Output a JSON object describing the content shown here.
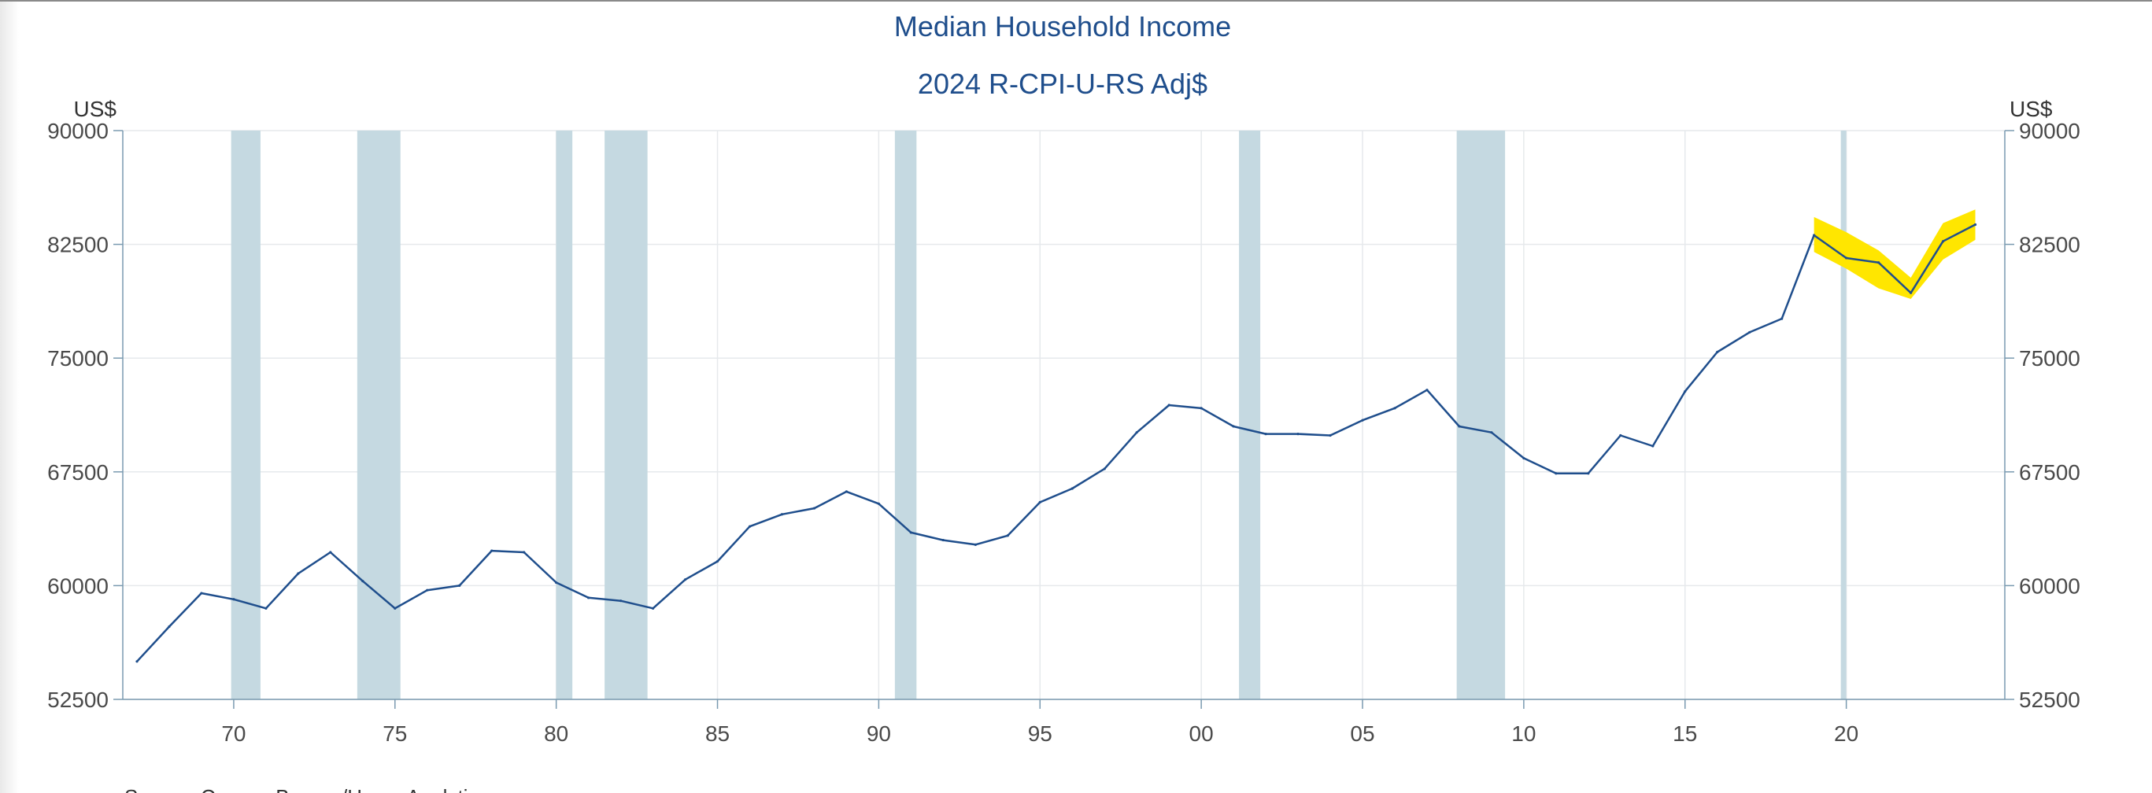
{
  "chart_data": {
    "type": "line",
    "title": "Median Household Income",
    "subtitle": "2024 R-CPI-U-RS Adj$",
    "y_unit_left": "US$",
    "y_unit_right": "US$",
    "ylim": [
      52500,
      90000
    ],
    "y_ticks": [
      52500,
      60000,
      67500,
      75000,
      82500,
      90000
    ],
    "y_tick_labels": [
      "52500",
      "60000",
      "67500",
      "75000",
      "82500",
      "90000"
    ],
    "xlim": [
      1967,
      2024.5
    ],
    "x_ticks": [
      1970,
      1975,
      1980,
      1985,
      1990,
      1995,
      2000,
      2005,
      2010,
      2015,
      2020
    ],
    "x_tick_labels": [
      "70",
      "75",
      "80",
      "85",
      "90",
      "95",
      "00",
      "05",
      "10",
      "15",
      "20"
    ],
    "grid": true,
    "legend": "none",
    "colors": {
      "series": "#1f4e8c",
      "recession": "#c5d9e1",
      "confidence_band": "#ffe600",
      "axis": "#7a9ab0",
      "title": "#1f4e8c"
    },
    "recessions": [
      [
        1969.92,
        1970.83
      ],
      [
        1973.83,
        1975.17
      ],
      [
        1980.0,
        1980.5
      ],
      [
        1981.5,
        1982.83
      ],
      [
        1990.5,
        1991.17
      ],
      [
        2001.17,
        2001.83
      ],
      [
        2007.92,
        2009.42
      ],
      [
        2019.83,
        2020.0
      ]
    ],
    "series": [
      {
        "x": [
          1967,
          1968,
          1969,
          1970,
          1971,
          1972,
          1973,
          1974,
          1975,
          1976,
          1977,
          1978,
          1979,
          1980,
          1981,
          1982,
          1983,
          1984,
          1985,
          1986,
          1987,
          1988,
          1989,
          1990,
          1991,
          1992,
          1993,
          1994,
          1995,
          1996,
          1997,
          1998,
          1999,
          2000,
          2001,
          2002,
          2003,
          2004,
          2005,
          2006,
          2007,
          2008,
          2009,
          2010,
          2011,
          2012,
          2013,
          2014,
          2015,
          2016,
          2017,
          2018,
          2019,
          2020,
          2021,
          2022,
          2023,
          2024
        ],
        "y": [
          55000,
          57300,
          59500,
          59100,
          58500,
          60800,
          62200,
          60300,
          58500,
          59700,
          60000,
          62300,
          62200,
          60200,
          59200,
          59000,
          58500,
          60400,
          61600,
          63900,
          64700,
          65100,
          66200,
          65400,
          63500,
          63000,
          62700,
          63300,
          65500,
          66400,
          67700,
          70100,
          71900,
          71700,
          70500,
          70000,
          70000,
          69900,
          70900,
          71700,
          72900,
          70500,
          70100,
          68400,
          67400,
          67400,
          69900,
          69200,
          72800,
          75400,
          76700,
          77600,
          83100,
          81600,
          81300,
          79300,
          82700,
          83800
        ]
      }
    ],
    "confidence_band": {
      "x": [
        2019,
        2020,
        2021,
        2022,
        2023,
        2024
      ],
      "low": [
        82000,
        80900,
        79600,
        78900,
        81500,
        82800
      ],
      "high": [
        84300,
        83300,
        82100,
        80300,
        83900,
        84800
      ]
    },
    "source": "Source: Census Bureau/Haver Analytics"
  }
}
